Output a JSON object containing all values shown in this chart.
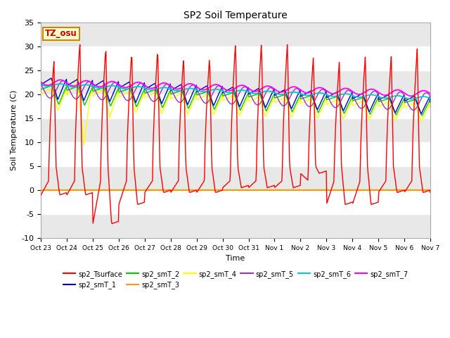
{
  "title": "SP2 Soil Temperature",
  "xlabel": "Time",
  "ylabel": "Soil Temperature (C)",
  "ylim": [
    -10,
    35
  ],
  "yticks": [
    -10,
    -5,
    0,
    5,
    10,
    15,
    20,
    25,
    30,
    35
  ],
  "fig_bg": "#ffffff",
  "plot_bg": "#ffffff",
  "annotation_text": "TZ_osu",
  "annotation_color": "#cc0000",
  "annotation_bg": "#ffffcc",
  "annotation_border": "#cc8800",
  "x_labels": [
    "Oct 23",
    "Oct 24",
    "Oct 25",
    "Oct 26",
    "Oct 27",
    "Oct 28",
    "Oct 29",
    "Oct 30",
    "Oct 31",
    "Nov 1",
    "Nov 2",
    "Nov 3",
    "Nov 4",
    "Nov 5",
    "Nov 6",
    "Nov 7"
  ],
  "series_colors": {
    "sp2_Tsurface": "#ff0000",
    "sp2_smT_1": "#0000cc",
    "sp2_smT_2": "#00cc00",
    "sp2_smT_3": "#ff9900",
    "sp2_smT_4": "#ffff00",
    "sp2_smT_5": "#9933cc",
    "sp2_smT_6": "#00cccc",
    "sp2_smT_7": "#ff00ff"
  }
}
